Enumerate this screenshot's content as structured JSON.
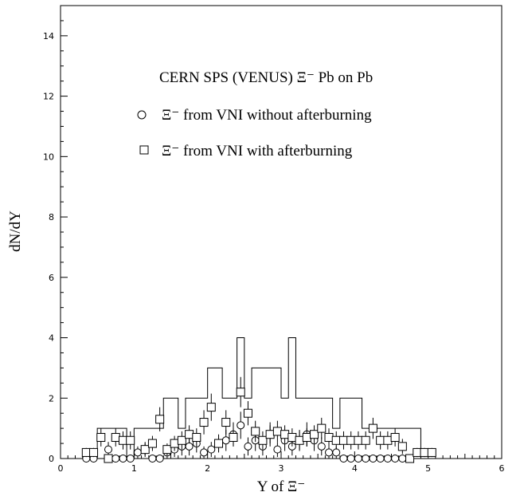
{
  "chart_data": {
    "type": "scatter",
    "title": "CERN SPS (VENUS) Ξ⁻ Pb on Pb",
    "xlabel": "Y of Ξ⁻",
    "ylabel": "dN/dY",
    "xlim": [
      0,
      6
    ],
    "ylim": [
      0,
      15
    ],
    "x_ticks": [
      "0",
      "1",
      "2",
      "3",
      "4",
      "5",
      "6"
    ],
    "y_ticks": [
      "0",
      "2",
      "4",
      "6",
      "8",
      "10",
      "12",
      "14"
    ],
    "grid": false,
    "legend_position": "top-center",
    "histogram": {
      "name": "",
      "edges": [
        0.5,
        0.6,
        0.7,
        0.8,
        0.9,
        1.0,
        1.1,
        1.2,
        1.3,
        1.4,
        1.5,
        1.6,
        1.7,
        1.8,
        1.9,
        2.0,
        2.1,
        2.2,
        2.3,
        2.4,
        2.5,
        2.6,
        2.7,
        2.8,
        2.9,
        3.0,
        3.1,
        3.2,
        3.3,
        3.4,
        3.5,
        3.6,
        3.7,
        3.8,
        3.9,
        4.0,
        4.1,
        4.2,
        4.3,
        4.4,
        4.5,
        4.6,
        4.7,
        4.8,
        4.9,
        5.0
      ],
      "values": [
        1,
        1,
        1,
        1,
        0,
        1,
        1,
        1,
        1,
        2,
        2,
        1,
        2,
        2,
        2,
        3,
        3,
        2,
        2,
        4,
        2,
        3,
        3,
        3,
        3,
        2,
        4,
        2,
        2,
        2,
        2,
        2,
        1,
        2,
        2,
        2,
        1,
        1,
        1,
        1,
        1,
        1,
        1,
        1,
        0
      ]
    },
    "series": [
      {
        "name": "Ξ⁻ from VNI without afterburning",
        "marker": "circle",
        "x": [
          0.35,
          0.45,
          0.65,
          0.75,
          0.85,
          0.95,
          1.05,
          1.15,
          1.25,
          1.35,
          1.45,
          1.55,
          1.65,
          1.75,
          1.85,
          1.95,
          2.05,
          2.15,
          2.25,
          2.35,
          2.45,
          2.55,
          2.65,
          2.75,
          2.85,
          2.95,
          3.05,
          3.15,
          3.25,
          3.35,
          3.45,
          3.55,
          3.65,
          3.75,
          3.85,
          3.95,
          4.05,
          4.15,
          4.25,
          4.35,
          4.45,
          4.55,
          4.65,
          4.75
        ],
        "values": [
          0,
          0,
          0.3,
          0,
          0,
          0,
          0.2,
          0.3,
          0,
          0,
          0.2,
          0.3,
          0.4,
          0.4,
          0.5,
          0.2,
          0.3,
          0.5,
          0.6,
          0.8,
          1.1,
          0.4,
          0.6,
          0.4,
          0.8,
          0.3,
          0.6,
          0.4,
          0.6,
          0.8,
          0.6,
          0.4,
          0.2,
          0.2,
          0,
          0,
          0,
          0,
          0,
          0,
          0,
          0,
          0,
          0
        ],
        "errors": [
          0.1,
          0.1,
          0.25,
          0.1,
          0.1,
          0.1,
          0.2,
          0.25,
          0.1,
          0.1,
          0.2,
          0.25,
          0.3,
          0.3,
          0.3,
          0.2,
          0.25,
          0.3,
          0.35,
          0.4,
          0.45,
          0.3,
          0.35,
          0.3,
          0.4,
          0.25,
          0.35,
          0.3,
          0.35,
          0.4,
          0.35,
          0.3,
          0.2,
          0.2,
          0.1,
          0.1,
          0.1,
          0.1,
          0.1,
          0.1,
          0.1,
          0.1,
          0.1,
          0.1
        ]
      },
      {
        "name": "Ξ⁻ from VNI with afterburning",
        "marker": "square",
        "x": [
          0.35,
          0.45,
          0.55,
          0.65,
          0.75,
          0.85,
          0.95,
          1.15,
          1.25,
          1.35,
          1.45,
          1.55,
          1.65,
          1.75,
          1.85,
          1.95,
          2.05,
          2.15,
          2.25,
          2.35,
          2.45,
          2.55,
          2.65,
          2.75,
          2.85,
          2.95,
          3.05,
          3.15,
          3.25,
          3.35,
          3.45,
          3.55,
          3.65,
          3.75,
          3.85,
          3.95,
          4.05,
          4.15,
          4.25,
          4.35,
          4.45,
          4.55,
          4.65,
          4.75,
          4.85,
          4.95,
          5.05
        ],
        "values": [
          0.2,
          0.2,
          0.7,
          0,
          0.7,
          0.6,
          0.6,
          0.3,
          0.5,
          1.3,
          0.3,
          0.5,
          0.6,
          0.8,
          0.7,
          1.2,
          1.7,
          0.5,
          1.2,
          0.7,
          2.2,
          1.5,
          0.9,
          0.6,
          0.8,
          0.9,
          0.8,
          0.7,
          0.6,
          0.7,
          0.8,
          1.0,
          0.7,
          0.6,
          0.6,
          0.6,
          0.6,
          0.6,
          1.0,
          0.6,
          0.6,
          0.7,
          0.4,
          0,
          0.2,
          0.2,
          0.2
        ],
        "errors": [
          0.15,
          0.15,
          0.3,
          0.1,
          0.3,
          0.3,
          0.3,
          0.2,
          0.25,
          0.4,
          0.2,
          0.25,
          0.3,
          0.3,
          0.3,
          0.4,
          0.45,
          0.25,
          0.4,
          0.3,
          0.5,
          0.4,
          0.35,
          0.3,
          0.3,
          0.35,
          0.3,
          0.3,
          0.3,
          0.3,
          0.3,
          0.35,
          0.3,
          0.3,
          0.3,
          0.3,
          0.3,
          0.3,
          0.35,
          0.3,
          0.3,
          0.3,
          0.25,
          0.1,
          0.15,
          0.15,
          0.15
        ]
      }
    ]
  }
}
